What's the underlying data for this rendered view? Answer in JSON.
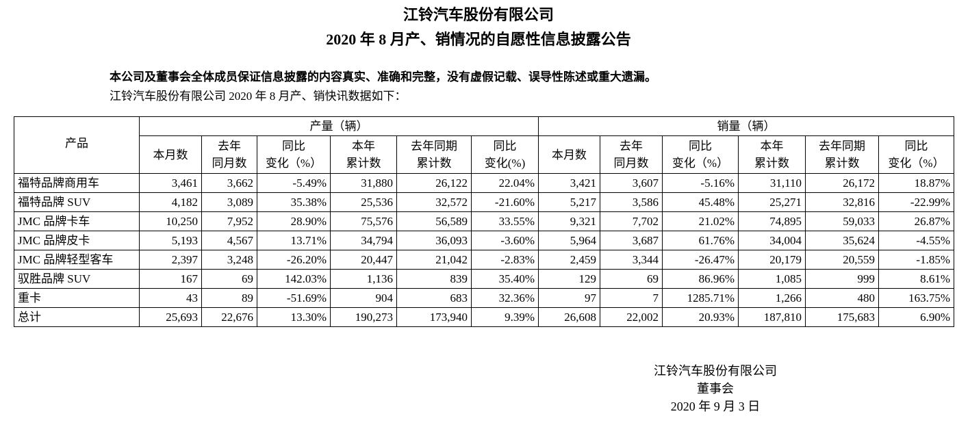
{
  "header": {
    "title": "江铃汽车股份有限公司",
    "subtitle": "2020 年 8 月产、销情况的自愿性信息披露公告"
  },
  "statement": "本公司及董事会全体成员保证信息披露的内容真实、准确和完整，没有虚假记载、误导性陈述或重大遗漏。",
  "intro": "江铃汽车股份有限公司 2020 年 8 月产、销快讯数据如下：",
  "table": {
    "product_header": "产品",
    "groups": [
      "产量（辆）",
      "销量（辆）"
    ],
    "columns": [
      [
        "本月数"
      ],
      [
        "去年",
        "同月数"
      ],
      [
        "同比",
        "变化（%）"
      ],
      [
        "本年",
        "累计数"
      ],
      [
        "去年同期",
        "累计数"
      ],
      [
        "同比",
        "变化(%)"
      ],
      [
        "本月数"
      ],
      [
        "去年",
        "同月数"
      ],
      [
        "同比",
        "变化（%）"
      ],
      [
        "本年",
        "累计数"
      ],
      [
        "去年同期",
        "累计数"
      ],
      [
        "同比",
        "变化（%）"
      ]
    ],
    "rows": [
      [
        "福特品牌商用车",
        "3,461",
        "3,662",
        "-5.49%",
        "31,880",
        "26,122",
        "22.04%",
        "3,421",
        "3,607",
        "-5.16%",
        "31,110",
        "26,172",
        "18.87%"
      ],
      [
        "福特品牌 SUV",
        "4,182",
        "3,089",
        "35.38%",
        "25,536",
        "32,572",
        "-21.60%",
        "5,217",
        "3,586",
        "45.48%",
        "25,271",
        "32,816",
        "-22.99%"
      ],
      [
        "JMC 品牌卡车",
        "10,250",
        "7,952",
        "28.90%",
        "75,576",
        "56,589",
        "33.55%",
        "9,321",
        "7,702",
        "21.02%",
        "74,895",
        "59,033",
        "26.87%"
      ],
      [
        "JMC 品牌皮卡",
        "5,193",
        "4,567",
        "13.71%",
        "34,794",
        "36,093",
        "-3.60%",
        "5,964",
        "3,687",
        "61.76%",
        "34,004",
        "35,624",
        "-4.55%"
      ],
      [
        "JMC 品牌轻型客车",
        "2,397",
        "3,248",
        "-26.20%",
        "20,447",
        "21,042",
        "-2.83%",
        "2,459",
        "3,344",
        "-26.47%",
        "20,179",
        "20,559",
        "-1.85%"
      ],
      [
        "驭胜品牌 SUV",
        "167",
        "69",
        "142.03%",
        "1,136",
        "839",
        "35.40%",
        "129",
        "69",
        "86.96%",
        "1,085",
        "999",
        "8.61%"
      ],
      [
        "重卡",
        "43",
        "89",
        "-51.69%",
        "904",
        "683",
        "32.36%",
        "97",
        "7",
        "1285.71%",
        "1,266",
        "480",
        "163.75%"
      ],
      [
        "总计",
        "25,693",
        "22,676",
        "13.30%",
        "190,273",
        "173,940",
        "9.39%",
        "26,608",
        "22,002",
        "20.93%",
        "187,810",
        "175,683",
        "6.90%"
      ]
    ]
  },
  "footer": {
    "company": "江铃汽车股份有限公司",
    "board": "董事会",
    "date": "2020 年 9 月 3 日"
  }
}
